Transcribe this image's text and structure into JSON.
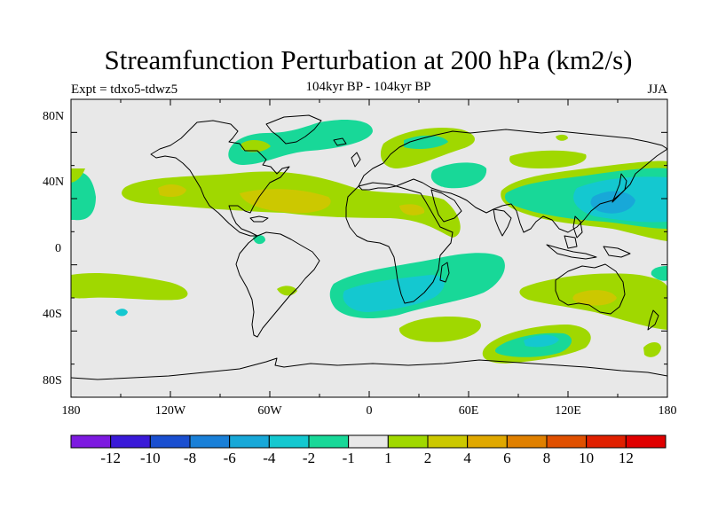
{
  "figure": {
    "title": "Streamfunction Perturbation at 200 hPa (km2/s)",
    "subtitle": "104kyr BP - 104kyr BP",
    "left_label": "Expt = tdxo5-tdwz5",
    "right_label": "JJA"
  },
  "map": {
    "projection": "cylindrical equidistant",
    "lon_range": [
      -180,
      180
    ],
    "lat_range": [
      -90,
      90
    ],
    "lat_tick_labels": [
      "80N",
      "40N",
      "0",
      "40S",
      "80S"
    ],
    "lon_tick_labels": [
      "180",
      "120W",
      "60W",
      "0",
      "60E",
      "120E",
      "180"
    ],
    "background_color": "#e8e8e8",
    "coastline_color": "#000000"
  },
  "colorbar": {
    "labels": [
      "-12",
      "-10",
      "-8",
      "-6",
      "-4",
      "-2",
      "-1",
      "1",
      "2",
      "4",
      "6",
      "8",
      "10",
      "12"
    ],
    "colors": [
      "#7d1ae0",
      "#3a1ad8",
      "#1a4fd0",
      "#1a80d8",
      "#18a8d8",
      "#14c8d0",
      "#18d898",
      "#e8e8e8",
      "#a0d800",
      "#ccc800",
      "#e0a800",
      "#e08000",
      "#e05000",
      "#e02000",
      "#e00000"
    ]
  },
  "field_fill_colors": {
    "pos1": "#a0d800",
    "pos2": "#ccc800",
    "neg1": "#18d898",
    "neg2": "#14c8d0",
    "neg3": "#18a8d8"
  }
}
